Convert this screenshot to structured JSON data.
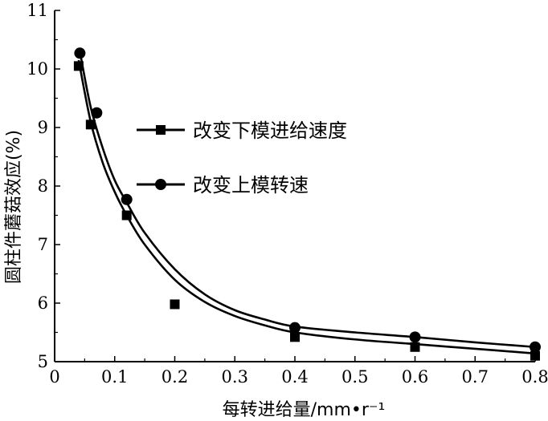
{
  "chart_data": {
    "type": "scatter",
    "title": "",
    "xlabel": "每转进给量/mm•r⁻¹",
    "ylabel": "圆柱件蘑菇效应(%)",
    "xlim": [
      0,
      0.8
    ],
    "ylim": [
      5,
      11
    ],
    "xticks": [
      "0",
      "0.1",
      "0.2",
      "0.3",
      "0.4",
      "0.5",
      "0.6",
      "0.7",
      "0.8"
    ],
    "yticks": [
      "5",
      "6",
      "7",
      "8",
      "9",
      "10",
      "11"
    ],
    "grid": false,
    "legend_position": "center-right",
    "series": [
      {
        "name": "改变下模进给速度",
        "marker": "square",
        "color": "#000000",
        "points": [
          {
            "x": 0.04,
            "y": 10.05
          },
          {
            "x": 0.06,
            "y": 9.05
          },
          {
            "x": 0.12,
            "y": 7.5
          },
          {
            "x": 0.2,
            "y": 5.98
          },
          {
            "x": 0.4,
            "y": 5.42
          },
          {
            "x": 0.6,
            "y": 5.25
          },
          {
            "x": 0.8,
            "y": 5.1
          }
        ],
        "fit_curve": [
          {
            "x": 0.04,
            "y": 10.15
          },
          {
            "x": 0.06,
            "y": 9.1
          },
          {
            "x": 0.08,
            "y": 8.4
          },
          {
            "x": 0.1,
            "y": 7.9
          },
          {
            "x": 0.12,
            "y": 7.5
          },
          {
            "x": 0.15,
            "y": 7.0
          },
          {
            "x": 0.2,
            "y": 6.4
          },
          {
            "x": 0.25,
            "y": 6.02
          },
          {
            "x": 0.3,
            "y": 5.78
          },
          {
            "x": 0.35,
            "y": 5.62
          },
          {
            "x": 0.4,
            "y": 5.5
          },
          {
            "x": 0.5,
            "y": 5.38
          },
          {
            "x": 0.6,
            "y": 5.3
          },
          {
            "x": 0.7,
            "y": 5.22
          },
          {
            "x": 0.8,
            "y": 5.14
          }
        ]
      },
      {
        "name": "改变上模转速",
        "marker": "circle",
        "color": "#000000",
        "points": [
          {
            "x": 0.042,
            "y": 10.27
          },
          {
            "x": 0.07,
            "y": 9.25
          },
          {
            "x": 0.12,
            "y": 7.77
          },
          {
            "x": 0.4,
            "y": 5.58
          },
          {
            "x": 0.6,
            "y": 5.42
          },
          {
            "x": 0.8,
            "y": 5.25
          }
        ],
        "fit_curve": [
          {
            "x": 0.042,
            "y": 10.3
          },
          {
            "x": 0.06,
            "y": 9.35
          },
          {
            "x": 0.08,
            "y": 8.65
          },
          {
            "x": 0.1,
            "y": 8.1
          },
          {
            "x": 0.12,
            "y": 7.72
          },
          {
            "x": 0.15,
            "y": 7.2
          },
          {
            "x": 0.2,
            "y": 6.58
          },
          {
            "x": 0.25,
            "y": 6.15
          },
          {
            "x": 0.3,
            "y": 5.88
          },
          {
            "x": 0.35,
            "y": 5.72
          },
          {
            "x": 0.4,
            "y": 5.6
          },
          {
            "x": 0.5,
            "y": 5.5
          },
          {
            "x": 0.6,
            "y": 5.42
          },
          {
            "x": 0.7,
            "y": 5.33
          },
          {
            "x": 0.8,
            "y": 5.25
          }
        ]
      }
    ]
  }
}
